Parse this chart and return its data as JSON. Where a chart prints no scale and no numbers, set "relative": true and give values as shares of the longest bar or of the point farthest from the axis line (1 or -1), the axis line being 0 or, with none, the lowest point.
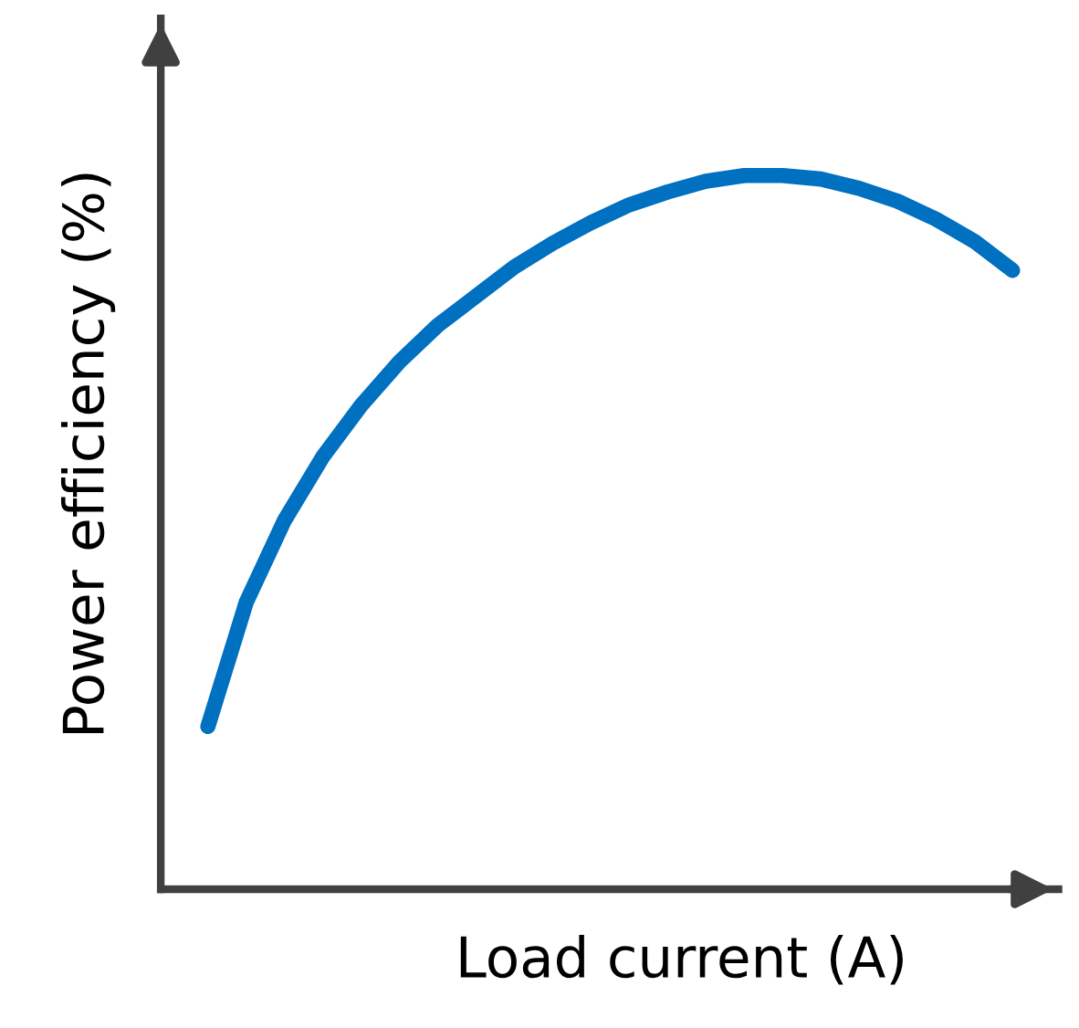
{
  "chart_data": {
    "type": "line",
    "relative": true,
    "xlabel": "Load current (A)",
    "ylabel": "Power efficiency (%)",
    "categories": [
      null,
      null,
      null,
      null,
      null,
      null,
      null,
      null,
      null,
      null,
      null,
      null,
      null,
      null,
      null,
      null,
      null,
      null,
      null,
      null,
      null,
      null
    ],
    "series": [
      {
        "color": "#0070c0",
        "values": [
          0.228,
          0.402,
          0.517,
          0.606,
          0.678,
          0.739,
          0.79,
          0.831,
          0.872,
          0.905,
          0.934,
          0.959,
          0.977,
          0.992,
          1,
          1,
          0.995,
          0.982,
          0.964,
          0.939,
          0.908,
          0.867
        ]
      }
    ],
    "legend": false,
    "tick_labels": false,
    "marker": "none",
    "line_style": "solid"
  }
}
